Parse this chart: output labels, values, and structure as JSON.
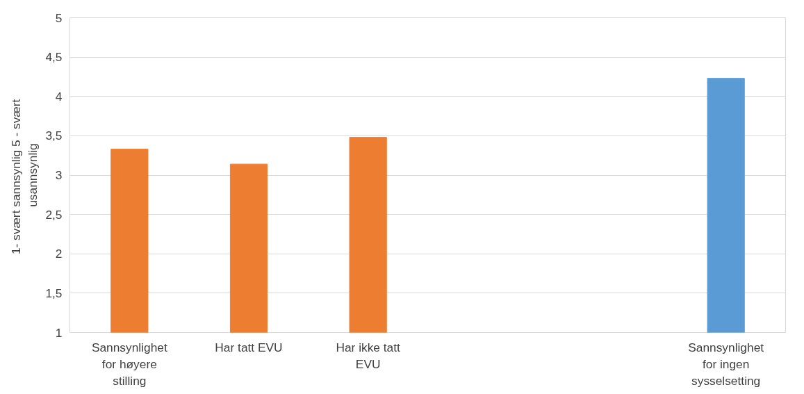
{
  "chart_data": {
    "type": "bar",
    "ylabel": "1- svært sannsynlig  5 - svært usannsynlig",
    "categories": [
      "Sannsynlighet for høyere stilling",
      "Har tatt EVU",
      "Har ikke tatt EVU",
      null,
      null,
      "Sannsynlighet for ingen sysselsetting"
    ],
    "values": [
      3.33,
      3.14,
      3.48,
      null,
      null,
      4.23
    ],
    "colors": [
      "#ed7d31",
      "#ed7d31",
      "#ed7d31",
      null,
      null,
      "#5b9bd5"
    ],
    "ylim": [
      1,
      5
    ],
    "yticks": [
      1,
      {
        "value": 1.5,
        "label": "1,5"
      },
      2,
      {
        "value": 2.5,
        "label": "2,5"
      },
      3,
      {
        "value": 3.5,
        "label": "3,5"
      },
      4,
      {
        "value": 4.5,
        "label": "4,5"
      },
      5
    ],
    "grid": "y"
  }
}
